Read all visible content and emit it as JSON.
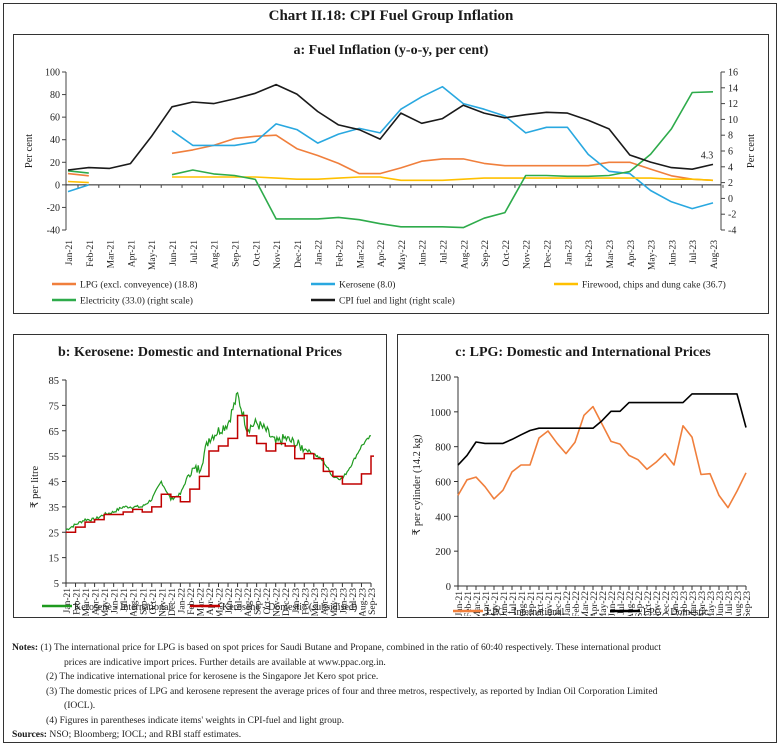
{
  "title": "Chart II.18: CPI Fuel Group Inflation",
  "chart_data": [
    {
      "id": "a",
      "type": "line",
      "title": "a: Fuel Inflation (y-o-y, per cent)",
      "ylabel": "Per cent",
      "ylabel_right": "Per cent",
      "ylim": [
        -40,
        100
      ],
      "ylim_right": [
        -4,
        16
      ],
      "yticks": [
        100,
        80,
        60,
        40,
        20,
        0,
        -20,
        -40
      ],
      "yticks_right": [
        16,
        14,
        12,
        10,
        8,
        6,
        4,
        2,
        0,
        -2,
        -4
      ],
      "categories": [
        "Jan-21",
        "Feb-21",
        "Mar-21",
        "Apr-21",
        "May-21",
        "Jun-21",
        "Jul-21",
        "Aug-21",
        "Sep-21",
        "Oct-21",
        "Nov-21",
        "Dec-21",
        "Jan-22",
        "Feb-22",
        "Mar-22",
        "Apr-22",
        "May-22",
        "Jun-22",
        "Jul-22",
        "Aug-22",
        "Sep-22",
        "Oct-22",
        "Nov-22",
        "Dec-22",
        "Jan-23",
        "Feb-23",
        "Mar-23",
        "Apr-23",
        "May-23",
        "Jun-23",
        "Jul-23",
        "Aug-23"
      ],
      "series": [
        {
          "name": "LPG (excl. conveyence) (18.8)",
          "axis": "left",
          "color": "#F07F3C",
          "values": [
            10,
            8,
            null,
            null,
            null,
            28,
            31,
            35,
            41,
            43,
            44,
            32,
            26,
            19,
            10,
            10,
            15,
            21,
            23,
            23,
            19,
            17,
            17,
            17,
            17,
            17,
            20,
            20,
            14,
            8,
            5,
            4
          ]
        },
        {
          "name": "Kerosene (8.0)",
          "axis": "left",
          "color": "#29A8E0",
          "values": [
            -6,
            0,
            null,
            null,
            null,
            48,
            35,
            35,
            35,
            38,
            54,
            49,
            37,
            45,
            50,
            46,
            67,
            78,
            87,
            72,
            67,
            61,
            46,
            51,
            51,
            27,
            12,
            10,
            -5,
            -15,
            -21,
            -16
          ]
        },
        {
          "name": "Firewood, chips and dung cake (36.7)",
          "axis": "left",
          "color": "#FFC000",
          "values": [
            3,
            2,
            null,
            null,
            null,
            7,
            7,
            7,
            7,
            7,
            6,
            5,
            5,
            6,
            7,
            7,
            4,
            4,
            4,
            5,
            6,
            6,
            6,
            6,
            6,
            6,
            6,
            6,
            6,
            5,
            5,
            4
          ]
        },
        {
          "name": "Electricity (33.0) (right scale)",
          "axis": "right",
          "color": "#2EAB4B",
          "values": [
            3.5,
            3.2,
            null,
            null,
            null,
            3.0,
            3.6,
            3.1,
            2.9,
            2.4,
            -2.6,
            -2.6,
            -2.6,
            -2.4,
            -2.7,
            -3.2,
            -3.6,
            -3.6,
            -3.6,
            -3.7,
            -2.5,
            -1.8,
            2.9,
            2.9,
            2.8,
            2.8,
            2.9,
            3.4,
            5.6,
            8.8,
            13.4,
            13.5
          ]
        },
        {
          "name": "CPI fuel and light (right scale)",
          "axis": "right",
          "color": "#1A1A1A",
          "values": [
            3.6,
            3.9,
            3.8,
            4.4,
            7.8,
            11.6,
            12.2,
            12.0,
            12.6,
            13.3,
            14.4,
            13.2,
            11.0,
            9.3,
            8.7,
            7.5,
            10.8,
            9.5,
            10.1,
            11.8,
            10.8,
            10.2,
            10.6,
            10.9,
            10.8,
            9.9,
            8.8,
            5.5,
            4.6,
            3.9,
            3.7,
            4.3
          ]
        }
      ],
      "annotations": [
        {
          "text": "4.3",
          "series": "CPI fuel and light (right scale)",
          "at": "Aug-23"
        }
      ],
      "legend": "bottom",
      "grid": false
    },
    {
      "id": "b",
      "type": "line",
      "title": "b: Kerosene: Domestic and International Prices",
      "ylabel": "₹ per litre",
      "ylim": [
        5,
        85
      ],
      "yticks": [
        85,
        75,
        65,
        55,
        45,
        35,
        25,
        15,
        5
      ],
      "categories": [
        "Jan-21",
        "Feb-21",
        "Mar-21",
        "Apr-21",
        "May-21",
        "Jun-21",
        "Jul-21",
        "Aug-21",
        "Sep-21",
        "Oct-21",
        "Nov-21",
        "Dec-21",
        "Jan-22",
        "Feb-22",
        "Mar-22",
        "Apr-22",
        "May-22",
        "Jun-22",
        "Jul-22",
        "Aug-22",
        "Sep-22",
        "Oct-22",
        "Nov-22",
        "Dec-22",
        "Jan-23",
        "Feb-23",
        "Mar-23",
        "Apr-23",
        "May-23",
        "Jun-23",
        "Jul-23",
        "Aug-23",
        "Sep-23"
      ],
      "series": [
        {
          "name": "Kerosene - International",
          "color": "#1E9A1E",
          "style": "daily",
          "values": [
            26,
            28,
            30,
            30,
            32,
            33,
            35,
            35,
            35,
            38,
            45,
            38,
            40,
            49,
            50,
            62,
            65,
            68,
            79,
            66,
            68,
            65,
            60,
            62,
            60,
            58,
            56,
            53,
            47,
            46,
            52,
            59,
            63
          ]
        },
        {
          "name": "Kerosene - Domestic (subsidised)",
          "color": "#C00000",
          "style": "step",
          "values": [
            25,
            27,
            29,
            30,
            32,
            32,
            33,
            34,
            33,
            35,
            40,
            39,
            37,
            42,
            47,
            57,
            59,
            62,
            71,
            63,
            60,
            57,
            60,
            59,
            54,
            56,
            54,
            49,
            47,
            44,
            44,
            48,
            55
          ]
        }
      ],
      "legend": "bottom",
      "grid": false
    },
    {
      "id": "c",
      "type": "line",
      "title": "c: LPG: Domestic and International Prices",
      "ylabel": "₹ per cylinder (14.2 kg)",
      "ylim": [
        0,
        1200
      ],
      "yticks": [
        1200,
        1000,
        800,
        600,
        400,
        200,
        0
      ],
      "categories": [
        "Jan-21",
        "Feb-21",
        "Mar-21",
        "Apr-21",
        "May-21",
        "Jun-21",
        "Jul-21",
        "Aug-21",
        "Sep-21",
        "Oct-21",
        "Nov-21",
        "Dec-21",
        "Jan-22",
        "Feb-22",
        "Mar-22",
        "Apr-22",
        "May-22",
        "Jun-22",
        "Jul-22",
        "Aug-22",
        "Sep-22",
        "Oct-22",
        "Nov-22",
        "Dec-22",
        "Jan-23",
        "Feb-23",
        "Mar-23",
        "Apr-23",
        "May-23",
        "Jun-23",
        "Jul-23",
        "Aug-23",
        "Sep-23"
      ],
      "series": [
        {
          "name": "LPG - International",
          "color": "#F07F3C",
          "values": [
            520,
            610,
            625,
            570,
            500,
            550,
            655,
            695,
            695,
            850,
            890,
            820,
            760,
            825,
            980,
            1030,
            930,
            830,
            815,
            750,
            725,
            670,
            710,
            760,
            695,
            920,
            855,
            640,
            645,
            520,
            450,
            545,
            650
          ]
        },
        {
          "name": "LPG - Domestic",
          "color": "#000000",
          "values": [
            694,
            750,
            827,
            819,
            819,
            819,
            842,
            868,
            893,
            906,
            906,
            906,
            906,
            906,
            906,
            906,
            949,
            1003,
            1003,
            1053,
            1053,
            1053,
            1053,
            1053,
            1053,
            1053,
            1103,
            1103,
            1103,
            1103,
            1103,
            1103,
            910
          ]
        }
      ],
      "legend": "bottom",
      "grid": false
    }
  ],
  "notes": {
    "label": "Notes:",
    "items": [
      "(1) The international price for LPG is based on spot prices for Saudi Butane and Propane, combined in the ratio of 60:40 respectively. These international product",
      "prices are indicative import prices. Further details are available at www.ppac.org.in.",
      "(2) The indicative international price for kerosene is the Singapore Jet Kero spot price.",
      "(3) The domestic prices of LPG and kerosene represent the average prices of four and three metros, respectively, as reported by Indian Oil Corporation Limited",
      "(IOCL).",
      "(4) Figures in parentheses indicate items' weights in CPI-fuel and light group."
    ]
  },
  "sources": {
    "label": "Sources:",
    "text": "NSO; Bloomberg; IOCL; and RBI staff estimates."
  }
}
